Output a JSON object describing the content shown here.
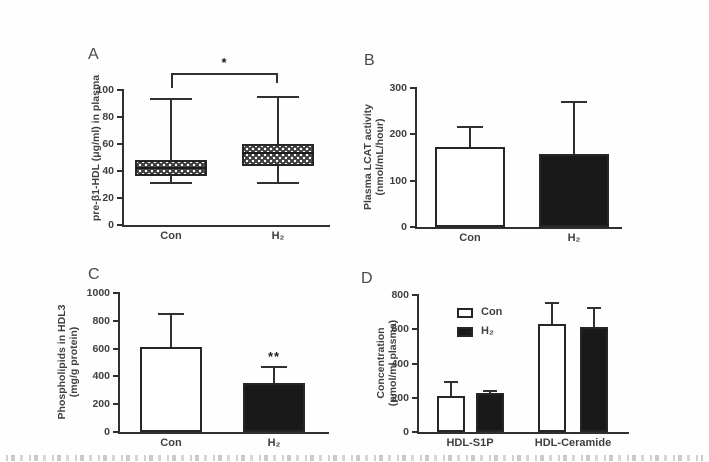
{
  "colors": {
    "axis": "#303030",
    "text": "#3f3f3f",
    "bar_black": "#191919",
    "bar_white": "#ffffff"
  },
  "chart_data": [
    {
      "panel_label": "A",
      "type": "boxplot",
      "ylabel_lines": [
        "pre-β1-HDL (μg/ml) in plasma"
      ],
      "ylim": [
        0,
        100
      ],
      "yticks": [
        0,
        20,
        40,
        60,
        80,
        100
      ],
      "categories": [
        "Con",
        "H₂"
      ],
      "boxes": [
        {
          "category": "Con",
          "whisker_low": 31,
          "q1": 36,
          "median": 42,
          "q3": 48,
          "whisker_high": 93
        },
        {
          "category": "H₂",
          "whisker_low": 31,
          "q1": 44,
          "median": 53,
          "q3": 60,
          "whisker_high": 95
        }
      ],
      "significance": {
        "label": "*",
        "between": [
          "Con",
          "H₂"
        ]
      }
    },
    {
      "panel_label": "B",
      "type": "bar",
      "ylabel_lines": [
        "Plasma LCAT activity",
        "(nmol/mL/hour)"
      ],
      "ylim": [
        0,
        300
      ],
      "yticks": [
        0,
        100,
        200,
        300
      ],
      "categories": [
        "Con",
        "H₂"
      ],
      "bars": [
        {
          "category": "Con",
          "value": 173,
          "error_top": 215,
          "fill": "white"
        },
        {
          "category": "H₂",
          "value": 157,
          "error_top": 270,
          "fill": "black"
        }
      ]
    },
    {
      "panel_label": "C",
      "type": "bar",
      "ylabel_lines": [
        "Phospholipids in HDL3",
        "(mg/g protein)"
      ],
      "ylim": [
        0,
        1000
      ],
      "yticks": [
        0,
        200,
        400,
        600,
        800,
        1000
      ],
      "categories": [
        "Con",
        "H₂"
      ],
      "bars": [
        {
          "category": "Con",
          "value": 610,
          "error_top": 850,
          "fill": "white"
        },
        {
          "category": "H₂",
          "value": 352,
          "error_top": 468,
          "fill": "black",
          "significance": "**"
        }
      ]
    },
    {
      "panel_label": "D",
      "type": "grouped_bar",
      "ylabel_lines": [
        "Concentration",
        "(pmol/ml plasma)"
      ],
      "ylim": [
        0,
        800
      ],
      "yticks": [
        0,
        200,
        400,
        600,
        800
      ],
      "categories": [
        "HDL-S1P",
        "HDL-Ceramide"
      ],
      "legend": [
        {
          "name": "Con",
          "fill": "white"
        },
        {
          "name": "H₂",
          "fill": "black"
        }
      ],
      "series": [
        {
          "name": "Con",
          "fill": "white",
          "values": [
            212,
            630
          ],
          "error_tops": [
            290,
            752
          ]
        },
        {
          "name": "H₂",
          "fill": "black",
          "values": [
            228,
            613
          ],
          "error_tops": [
            237,
            723
          ]
        }
      ]
    }
  ]
}
